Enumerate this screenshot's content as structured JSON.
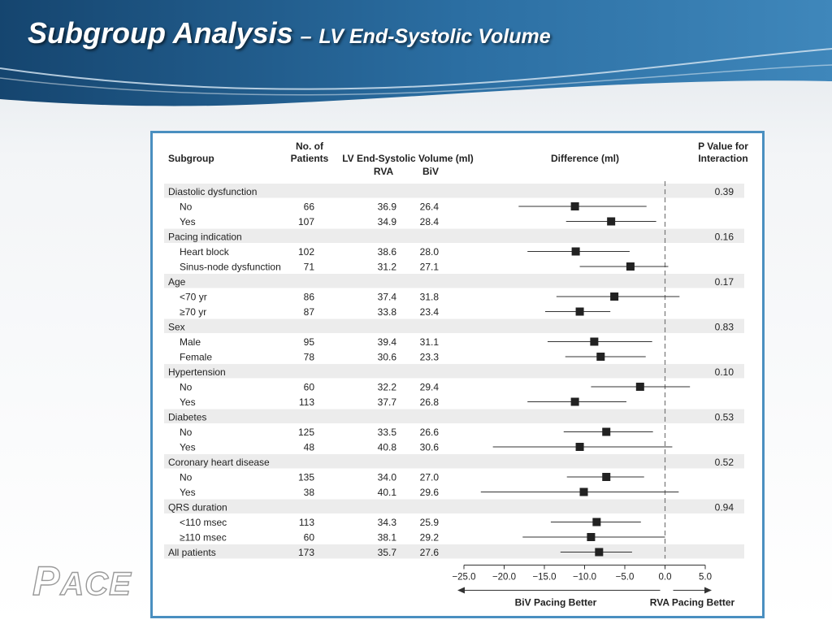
{
  "slide": {
    "title_main": "Subgroup Analysis",
    "title_separator": "–",
    "title_sub": "LV End-Systolic Volume",
    "logo_first": "P",
    "logo_rest": "ACE"
  },
  "colors": {
    "header_dark": "#1a4f7e",
    "header_mid": "#2f74a8",
    "frame_border": "#4a8fc0",
    "row_band": "#ececec",
    "marker": "#222222"
  },
  "chart_data": {
    "type": "forest",
    "headers": {
      "subgroup": "Subgroup",
      "patients": [
        "No. of",
        "Patients"
      ],
      "volume": "LV End-Systolic Volume (ml)",
      "rva": "RVA",
      "biv": "BiV",
      "difference": "Difference (ml)",
      "pvalue": [
        "P Value for",
        "Interaction"
      ]
    },
    "xlim": [
      -25,
      5
    ],
    "xticks": [
      "−25.0",
      "−20.0",
      "−15.0",
      "−10.0",
      "−5.0",
      "0.0",
      "5.0"
    ],
    "xtick_values": [
      -25,
      -20,
      -15,
      -10,
      -5,
      0,
      5
    ],
    "reference_line": 0,
    "direction_labels": {
      "left": "BiV Pacing Better",
      "right": "RVA Pacing Better"
    },
    "rows": [
      {
        "type": "group",
        "label": "Diastolic dysfunction",
        "p": "0.39"
      },
      {
        "type": "item",
        "label": "No",
        "n": "66",
        "rva": "36.9",
        "biv": "26.4",
        "est": -11.2,
        "lo": -18.2,
        "hi": -2.3
      },
      {
        "type": "item",
        "label": "Yes",
        "n": "107",
        "rva": "34.9",
        "biv": "28.4",
        "est": -6.7,
        "lo": -12.3,
        "hi": -1.1
      },
      {
        "type": "group",
        "label": "Pacing indication",
        "p": "0.16"
      },
      {
        "type": "item",
        "label": "Heart block",
        "n": "102",
        "rva": "38.6",
        "biv": "28.0",
        "est": -11.1,
        "lo": -17.1,
        "hi": -4.4
      },
      {
        "type": "item",
        "label": "Sinus-node dysfunction",
        "n": "71",
        "rva": "31.2",
        "biv": "27.1",
        "est": -4.3,
        "lo": -10.6,
        "hi": 0.4
      },
      {
        "type": "group",
        "label": "Age",
        "p": "0.17"
      },
      {
        "type": "item",
        "label": "<70 yr",
        "n": "86",
        "rva": "37.4",
        "biv": "31.8",
        "est": -6.3,
        "lo": -13.5,
        "hi": 1.8
      },
      {
        "type": "item",
        "label": "≥70 yr",
        "n": "87",
        "rva": "33.8",
        "biv": "23.4",
        "est": -10.6,
        "lo": -14.9,
        "hi": -6.8
      },
      {
        "type": "group",
        "label": "Sex",
        "p": "0.83"
      },
      {
        "type": "item",
        "label": "Male",
        "n": "95",
        "rva": "39.4",
        "biv": "31.1",
        "est": -8.8,
        "lo": -14.6,
        "hi": -1.6
      },
      {
        "type": "item",
        "label": "Female",
        "n": "78",
        "rva": "30.6",
        "biv": "23.3",
        "est": -8.0,
        "lo": -12.4,
        "hi": -2.4
      },
      {
        "type": "group",
        "label": "Hypertension",
        "p": "0.10"
      },
      {
        "type": "item",
        "label": "No",
        "n": "60",
        "rva": "32.2",
        "biv": "29.4",
        "est": -3.1,
        "lo": -9.2,
        "hi": 3.1
      },
      {
        "type": "item",
        "label": "Yes",
        "n": "113",
        "rva": "37.7",
        "biv": "26.8",
        "est": -11.2,
        "lo": -17.1,
        "hi": -4.8
      },
      {
        "type": "group",
        "label": "Diabetes",
        "p": "0.53"
      },
      {
        "type": "item",
        "label": "No",
        "n": "125",
        "rva": "33.5",
        "biv": "26.6",
        "est": -7.3,
        "lo": -12.6,
        "hi": -1.5
      },
      {
        "type": "item",
        "label": "Yes",
        "n": "48",
        "rva": "40.8",
        "biv": "30.6",
        "est": -10.6,
        "lo": -21.4,
        "hi": 0.9
      },
      {
        "type": "group",
        "label": "Coronary heart disease",
        "p": "0.52"
      },
      {
        "type": "item",
        "label": "No",
        "n": "135",
        "rva": "34.0",
        "biv": "27.0",
        "est": -7.3,
        "lo": -12.2,
        "hi": -2.6
      },
      {
        "type": "item",
        "label": "Yes",
        "n": "38",
        "rva": "40.1",
        "biv": "29.6",
        "est": -10.1,
        "lo": -22.9,
        "hi": 1.7
      },
      {
        "type": "group",
        "label": "QRS duration",
        "p": "0.94"
      },
      {
        "type": "item",
        "label": "<110 msec",
        "n": "113",
        "rva": "34.3",
        "biv": "25.9",
        "est": -8.5,
        "lo": -14.2,
        "hi": -3.0
      },
      {
        "type": "item",
        "label": "≥110 msec",
        "n": "60",
        "rva": "38.1",
        "biv": "29.2",
        "est": -9.2,
        "lo": -17.7,
        "hi": 0.0
      },
      {
        "type": "total",
        "label": "All patients",
        "n": "173",
        "rva": "35.7",
        "biv": "27.6",
        "est": -8.2,
        "lo": -13.0,
        "hi": -4.1
      }
    ]
  }
}
